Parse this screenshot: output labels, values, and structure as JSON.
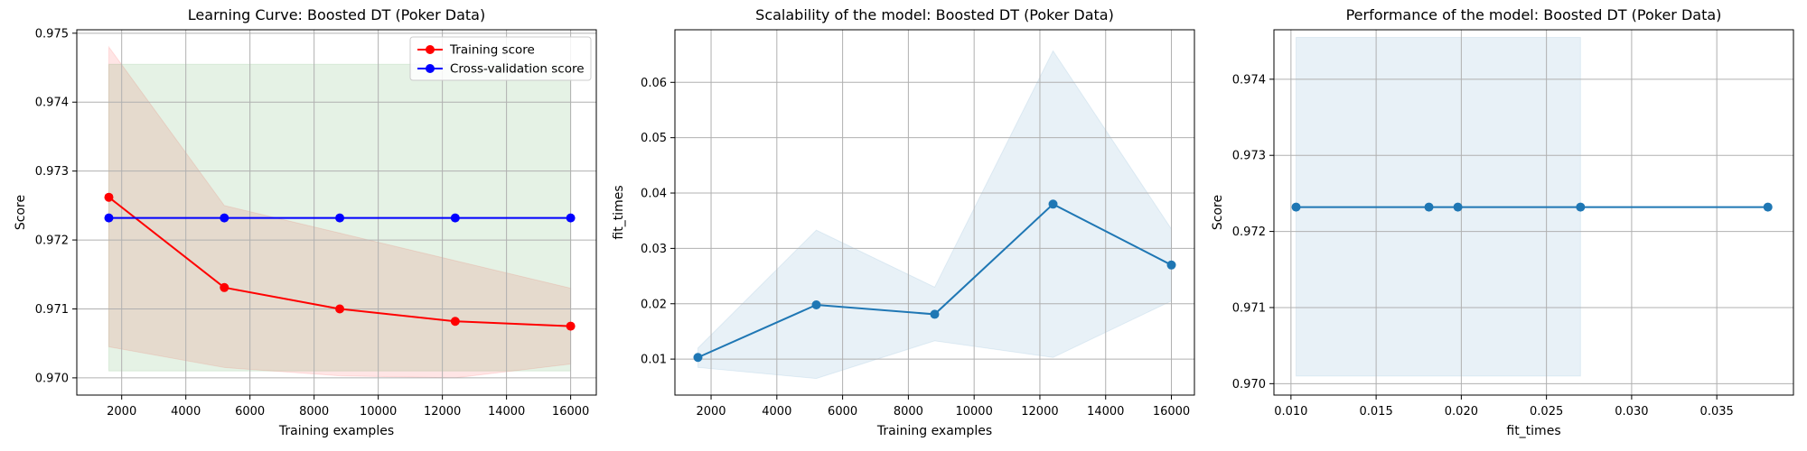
{
  "chart_data": [
    {
      "type": "line",
      "title": "Learning Curve: Boosted DT (Poker Data)",
      "xlabel": "Training examples",
      "ylabel": "Score",
      "xlim": [
        600,
        16800
      ],
      "ylim": [
        0.96975,
        0.97505
      ],
      "xticks": [
        2000,
        4000,
        6000,
        8000,
        10000,
        12000,
        14000,
        16000
      ],
      "xtick_labels": [
        "2000",
        "4000",
        "6000",
        "8000",
        "10000",
        "12000",
        "14000",
        "16000"
      ],
      "yticks": [
        0.97,
        0.971,
        0.972,
        0.973,
        0.974,
        0.975
      ],
      "ytick_labels": [
        "0.970",
        "0.971",
        "0.972",
        "0.973",
        "0.974",
        "0.975"
      ],
      "grid": true,
      "legend_position": "top-right",
      "x": [
        1600,
        5200,
        8800,
        12400,
        16000
      ],
      "series": [
        {
          "name": "Training score",
          "color": "#ff0000",
          "values": [
            0.97262,
            0.97131,
            0.971,
            0.97082,
            0.97075
          ],
          "band_upper": [
            0.9748,
            0.9725,
            0.9721,
            0.9717,
            0.9713
          ],
          "band_lower": [
            0.97045,
            0.97015,
            0.97003,
            0.97,
            0.9702
          ],
          "band_color": "#ff0000"
        },
        {
          "name": "Cross-validation score",
          "color": "#0000ff",
          "values": [
            0.97232,
            0.97232,
            0.97232,
            0.97232,
            0.97232
          ],
          "band_upper": [
            0.97455,
            0.97455,
            0.97455,
            0.97455,
            0.97455
          ],
          "band_lower": [
            0.9701,
            0.9701,
            0.9701,
            0.9701,
            0.9701
          ],
          "band_color": "#008000"
        }
      ]
    },
    {
      "type": "line",
      "title": "Scalability of the model: Boosted DT (Poker Data)",
      "xlabel": "Training examples",
      "ylabel": "fit_times",
      "xlim": [
        900,
        16700
      ],
      "ylim": [
        0.0035,
        0.0695
      ],
      "xticks": [
        2000,
        4000,
        6000,
        8000,
        10000,
        12000,
        14000,
        16000
      ],
      "xtick_labels": [
        "2000",
        "4000",
        "6000",
        "8000",
        "10000",
        "12000",
        "14000",
        "16000"
      ],
      "yticks": [
        0.01,
        0.02,
        0.03,
        0.04,
        0.05,
        0.06
      ],
      "ytick_labels": [
        "0.01",
        "0.02",
        "0.03",
        "0.04",
        "0.05",
        "0.06"
      ],
      "grid": true,
      "x": [
        1600,
        5200,
        8800,
        12400,
        16000
      ],
      "series": [
        {
          "color": "#1f77b4",
          "values": [
            0.0103,
            0.0198,
            0.0181,
            0.038,
            0.027
          ],
          "band_upper": [
            0.012,
            0.0333,
            0.023,
            0.0657,
            0.0335
          ],
          "band_lower": [
            0.0085,
            0.0065,
            0.0133,
            0.0103,
            0.0205
          ],
          "band_color": "#1f77b4"
        }
      ]
    },
    {
      "type": "line",
      "title": "Performance of the model: Boosted DT (Poker Data)",
      "xlabel": "fit_times",
      "ylabel": "Score",
      "xlim": [
        0.009,
        0.0395
      ],
      "ylim": [
        0.96985,
        0.97465
      ],
      "xticks": [
        0.01,
        0.015,
        0.02,
        0.025,
        0.03,
        0.035
      ],
      "xtick_labels": [
        "0.010",
        "0.015",
        "0.020",
        "0.025",
        "0.030",
        "0.035"
      ],
      "yticks": [
        0.97,
        0.971,
        0.972,
        0.973,
        0.974
      ],
      "ytick_labels": [
        "0.970",
        "0.971",
        "0.972",
        "0.973",
        "0.974"
      ],
      "grid": true,
      "x": [
        0.0103,
        0.0181,
        0.0198,
        0.027,
        0.038
      ],
      "series": [
        {
          "color": "#1f77b4",
          "values": [
            0.97232,
            0.97232,
            0.97232,
            0.97232,
            0.97232
          ],
          "band_x": [
            0.0103,
            0.027
          ],
          "band_upper": 0.97455,
          "band_lower": 0.9701,
          "band_color": "#1f77b4"
        }
      ]
    }
  ]
}
